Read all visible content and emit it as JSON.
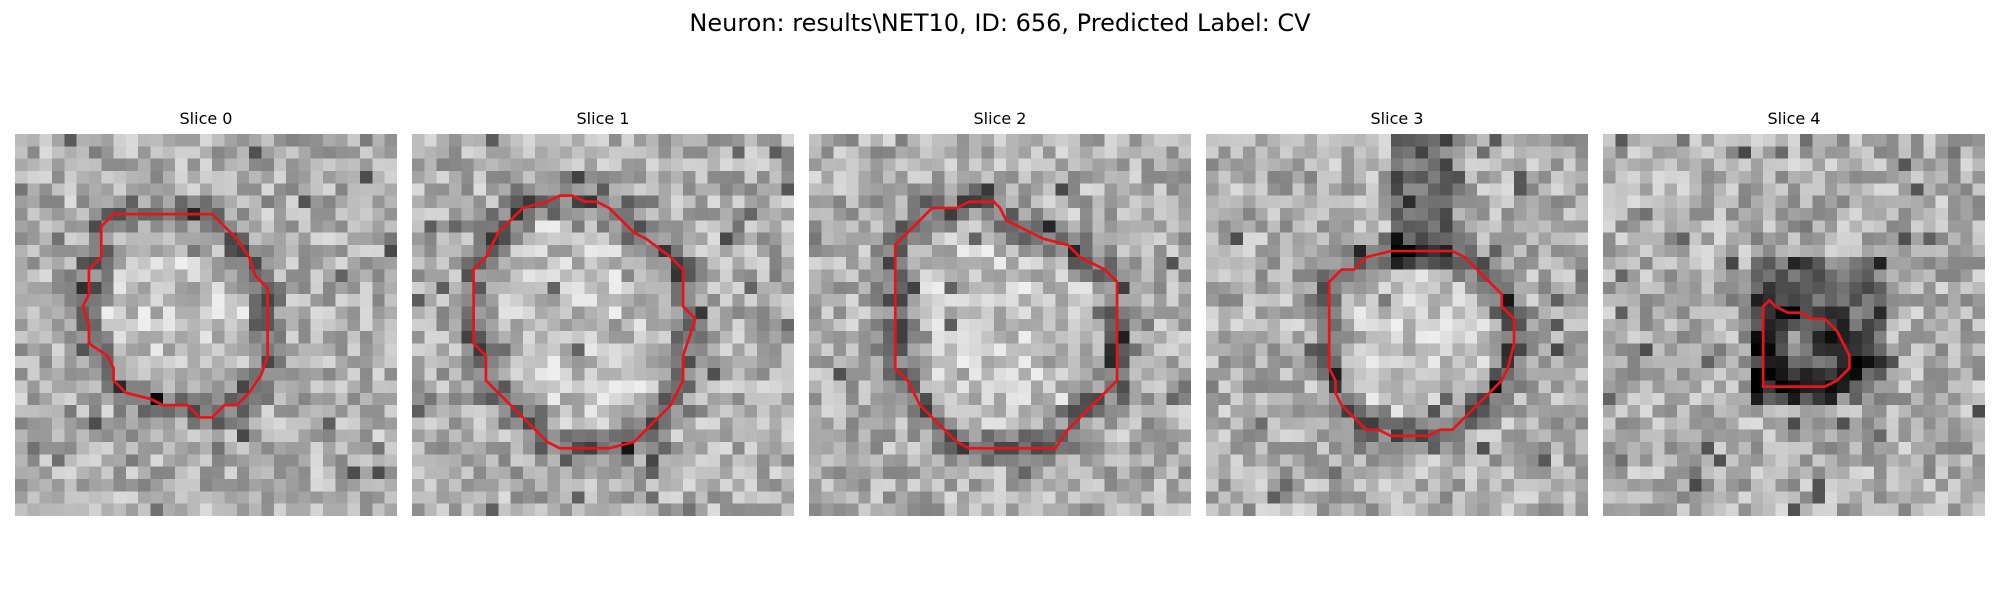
{
  "figure": {
    "title": "Neuron: results\\NET10, ID: 656, Predicted Label: CV"
  },
  "panels": [
    {
      "title": "Slice 0"
    },
    {
      "title": "Slice 1"
    },
    {
      "title": "Slice 2"
    },
    {
      "title": "Slice 3"
    },
    {
      "title": "Slice 4"
    }
  ],
  "colors": {
    "contour": "#e8141b",
    "background": "#ffffff",
    "image_colormap": "grayscale"
  }
}
